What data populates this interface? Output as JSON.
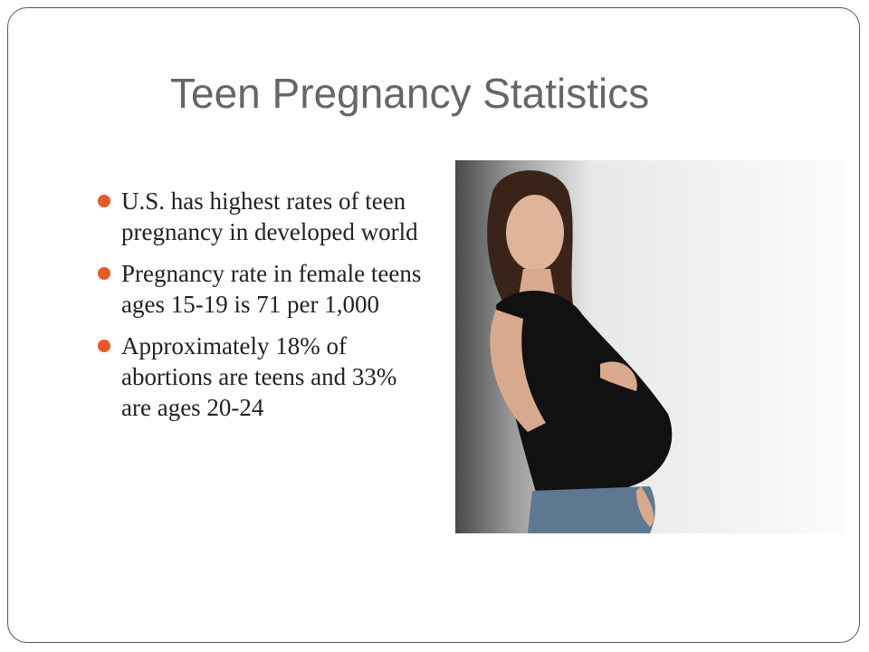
{
  "title": "Teen Pregnancy Statistics",
  "bullets": [
    "U.S. has highest rates of teen pregnancy in developed world",
    "Pregnancy rate in female teens ages 15-19 is 71 per 1,000",
    "Approximately 18% of abortions are teens and 33% are ages 20-24"
  ]
}
